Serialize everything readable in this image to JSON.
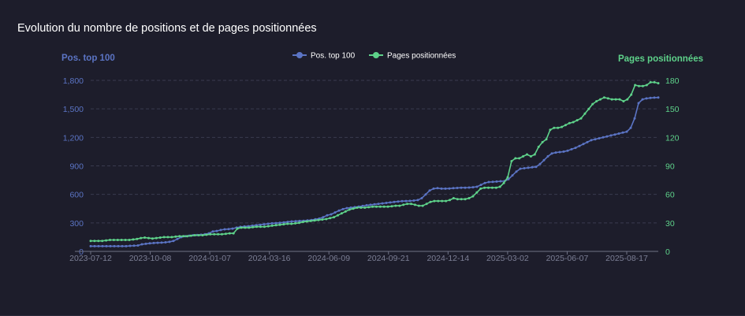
{
  "title": "Evolution du nombre de positions et de pages positionnées",
  "chart_data": {
    "type": "line",
    "title": "Evolution du nombre de positions et de pages positionnées",
    "left_axis": {
      "label": "Pos. top 100",
      "ticks": [
        "0",
        "300",
        "600",
        "900",
        "1,200",
        "1,500",
        "1,800"
      ],
      "range": [
        0,
        1800
      ]
    },
    "right_axis": {
      "label": "Pages positionnées",
      "ticks": [
        "0",
        "30",
        "60",
        "90",
        "120",
        "150",
        "180"
      ],
      "range": [
        0,
        180
      ]
    },
    "x_ticks": [
      "2023-07-12",
      "2023-10-08",
      "2024-01-07",
      "2024-03-16",
      "2024-06-09",
      "2024-09-21",
      "2024-12-14",
      "2025-03-02",
      "2025-06-07",
      "2025-08-17"
    ],
    "grid": "horizontal dashed",
    "legend_position": "top-center",
    "series": [
      {
        "name": "Pos. top 100",
        "axis": "left",
        "color": "#5b74c4",
        "values": [
          55,
          55,
          55,
          55,
          55,
          55,
          55,
          55,
          55,
          55,
          58,
          60,
          62,
          75,
          80,
          85,
          88,
          90,
          92,
          95,
          100,
          110,
          130,
          150,
          160,
          165,
          170,
          172,
          175,
          180,
          190,
          210,
          215,
          225,
          232,
          235,
          240,
          250,
          258,
          262,
          265,
          270,
          275,
          280,
          285,
          290,
          295,
          298,
          300,
          305,
          310,
          315,
          318,
          320,
          322,
          325,
          330,
          338,
          345,
          360,
          380,
          390,
          410,
          430,
          445,
          455,
          460,
          465,
          470,
          478,
          485,
          490,
          495,
          500,
          505,
          510,
          515,
          520,
          525,
          528,
          530,
          532,
          535,
          540,
          560,
          600,
          640,
          660,
          665,
          660,
          660,
          662,
          665,
          668,
          670,
          670,
          672,
          675,
          680,
          700,
          720,
          730,
          732,
          735,
          738,
          740,
          760,
          800,
          840,
          870,
          875,
          880,
          885,
          890,
          920,
          960,
          1000,
          1030,
          1040,
          1045,
          1050,
          1060,
          1075,
          1090,
          1110,
          1130,
          1150,
          1170,
          1180,
          1190,
          1200,
          1210,
          1220,
          1230,
          1240,
          1250,
          1260,
          1300,
          1400,
          1560,
          1600,
          1610,
          1615,
          1618,
          1620
        ]
      },
      {
        "name": "Pages positionnées",
        "axis": "right",
        "color": "#5ed28a",
        "values": [
          11,
          11,
          11,
          11,
          11.5,
          12,
          12,
          12,
          12,
          12,
          12,
          12.5,
          13,
          14,
          14.5,
          14,
          13.5,
          14,
          14.5,
          15,
          15,
          15,
          15.5,
          16,
          16,
          16,
          16.5,
          17,
          17,
          17,
          17.5,
          18,
          18,
          18,
          18,
          18.5,
          19,
          19,
          24,
          25,
          25,
          25,
          25.5,
          26,
          26,
          26,
          26.5,
          27,
          27.5,
          28,
          28.5,
          29,
          29,
          29.5,
          30,
          31,
          31.5,
          32,
          32.5,
          33,
          33.5,
          34,
          35,
          36,
          38,
          40,
          42,
          44,
          45,
          46,
          46,
          46,
          46.5,
          47,
          47,
          47,
          47,
          47,
          47.5,
          48,
          48,
          49,
          50,
          50,
          49,
          48,
          48,
          50,
          52,
          53,
          53,
          53,
          53,
          54,
          56,
          55,
          55,
          55,
          56,
          58,
          62,
          66,
          67,
          67,
          67,
          67,
          68,
          72,
          78,
          95,
          98,
          98,
          100,
          102,
          100,
          102,
          110,
          115,
          118,
          128,
          130,
          130,
          131,
          133,
          135,
          136,
          138,
          140,
          145,
          150,
          155,
          158,
          160,
          162,
          161,
          160,
          160,
          160,
          158,
          160,
          165,
          175,
          174,
          174,
          175,
          178,
          178,
          177
        ]
      }
    ]
  }
}
